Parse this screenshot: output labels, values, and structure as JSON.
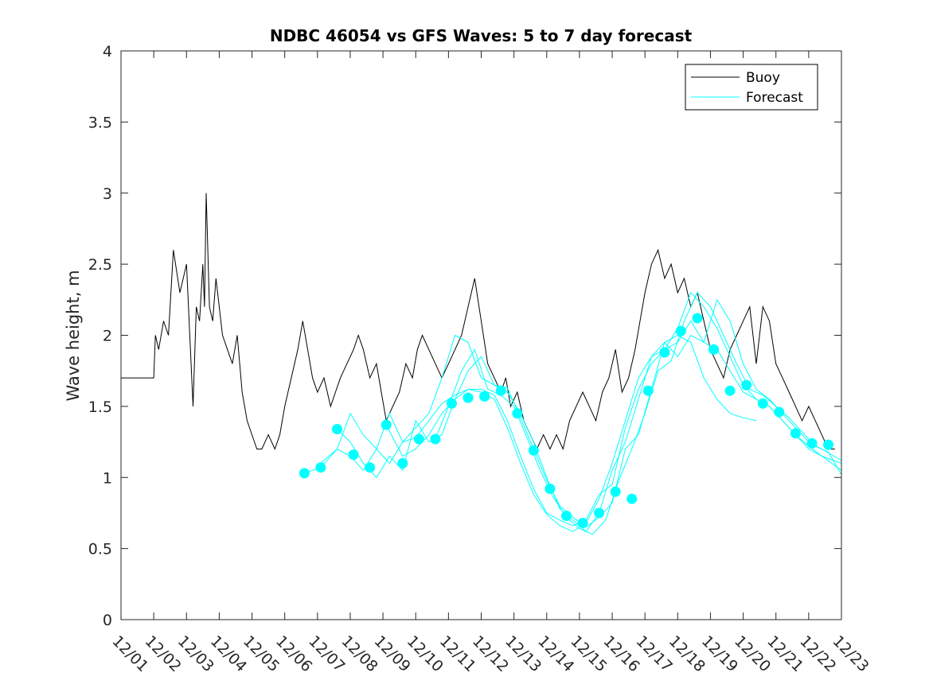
{
  "chart_data": {
    "type": "line",
    "title": "NDBC 46054 vs GFS Waves: 5 to 7 day forecast",
    "xlabel": "",
    "ylabel": "Wave height, m",
    "xlim": [
      0,
      22
    ],
    "ylim": [
      0,
      4
    ],
    "yticks": [
      0,
      0.5,
      1,
      1.5,
      2,
      2.5,
      3,
      3.5,
      4
    ],
    "ytick_labels": [
      "0",
      "0.5",
      "1",
      "1.5",
      "2",
      "2.5",
      "3",
      "3.5",
      "4"
    ],
    "xtick_labels": [
      "12/01",
      "12/02",
      "12/03",
      "12/04",
      "12/05",
      "12/06",
      "12/07",
      "12/08",
      "12/09",
      "12/10",
      "12/11",
      "12/12",
      "12/13",
      "12/14",
      "12/15",
      "12/16",
      "12/17",
      "12/18",
      "12/19",
      "12/20",
      "12/21",
      "12/22",
      "12/23"
    ],
    "legend": [
      "Buoy",
      "Forecast"
    ],
    "legend_position": "top-right",
    "colors": {
      "buoy": "#000000",
      "forecast": "#00ffff",
      "axis": "#262626"
    },
    "series": [
      {
        "name": "Buoy",
        "x": [
          0,
          1,
          1.05,
          1.15,
          1.3,
          1.45,
          1.6,
          1.8,
          2.0,
          2.1,
          2.2,
          2.3,
          2.4,
          2.5,
          2.55,
          2.6,
          2.7,
          2.8,
          2.9,
          3.0,
          3.1,
          3.25,
          3.4,
          3.55,
          3.7,
          3.85,
          4.0,
          4.15,
          4.3,
          4.5,
          4.7,
          4.85,
          5.0,
          5.2,
          5.4,
          5.55,
          5.7,
          5.85,
          6.0,
          6.2,
          6.4,
          6.55,
          6.7,
          6.9,
          7.1,
          7.25,
          7.4,
          7.6,
          7.8,
          7.95,
          8.1,
          8.3,
          8.5,
          8.7,
          8.9,
          9.05,
          9.2,
          9.4,
          9.6,
          9.8,
          10.0,
          10.2,
          10.4,
          10.6,
          10.8,
          11.0,
          11.2,
          11.4,
          11.6,
          11.75,
          11.9,
          12.1,
          12.3,
          12.5,
          12.7,
          12.9,
          13.1,
          13.3,
          13.5,
          13.7,
          13.9,
          14.1,
          14.3,
          14.5,
          14.7,
          14.9,
          15.1,
          15.3,
          15.5,
          15.7,
          15.85,
          16.0,
          16.2,
          16.4,
          16.6,
          16.8,
          17.0,
          17.2,
          17.4,
          17.6,
          17.8,
          18.0,
          18.2,
          18.4,
          18.6,
          18.8,
          19.0,
          19.2,
          19.4,
          19.6,
          19.8,
          20.0,
          20.2,
          20.4,
          20.6,
          20.8,
          21.0,
          21.2,
          21.4,
          21.6,
          21.8
        ],
        "y": [
          1.7,
          1.7,
          2.0,
          1.9,
          2.1,
          2.0,
          2.6,
          2.3,
          2.5,
          2.0,
          1.5,
          2.2,
          2.1,
          2.5,
          2.2,
          3.0,
          2.2,
          2.1,
          2.4,
          2.2,
          2.0,
          1.9,
          1.8,
          2.0,
          1.6,
          1.4,
          1.3,
          1.2,
          1.2,
          1.3,
          1.2,
          1.3,
          1.5,
          1.7,
          1.9,
          2.1,
          1.9,
          1.7,
          1.6,
          1.7,
          1.5,
          1.6,
          1.7,
          1.8,
          1.9,
          2.0,
          1.9,
          1.7,
          1.8,
          1.6,
          1.4,
          1.5,
          1.6,
          1.8,
          1.7,
          1.9,
          2.0,
          1.9,
          1.8,
          1.7,
          1.8,
          1.9,
          2.0,
          2.2,
          2.4,
          2.1,
          1.8,
          1.7,
          1.6,
          1.7,
          1.5,
          1.6,
          1.4,
          1.3,
          1.2,
          1.3,
          1.2,
          1.3,
          1.2,
          1.4,
          1.5,
          1.6,
          1.5,
          1.4,
          1.6,
          1.7,
          1.9,
          1.6,
          1.7,
          1.9,
          2.1,
          2.3,
          2.5,
          2.6,
          2.4,
          2.5,
          2.3,
          2.4,
          2.2,
          2.3,
          2.1,
          1.9,
          1.8,
          1.7,
          1.9,
          2.0,
          2.1,
          2.2,
          1.8,
          2.2,
          2.1,
          1.8,
          1.7,
          1.6,
          1.5,
          1.4,
          1.5,
          1.4,
          1.3,
          1.2,
          1.2
        ]
      },
      {
        "name": "Forecast",
        "markers_x": [
          5.6,
          6.1,
          6.6,
          7.1,
          7.6,
          8.1,
          8.6,
          9.1,
          9.6,
          10.1,
          10.6,
          11.1,
          11.6,
          12.1,
          12.6,
          13.1,
          13.6,
          14.1,
          14.6,
          15.1,
          15.6,
          16.1,
          16.6,
          17.1,
          17.6,
          18.1,
          18.6,
          19.1,
          19.6,
          20.1,
          20.6,
          21.1,
          21.6
        ],
        "markers_y": [
          1.03,
          1.07,
          1.34,
          1.16,
          1.07,
          1.37,
          1.1,
          1.27,
          1.27,
          1.52,
          1.56,
          1.57,
          1.61,
          1.45,
          1.19,
          0.92,
          0.73,
          0.68,
          0.75,
          0.9,
          0.85,
          1.61,
          1.88,
          2.03,
          2.12,
          1.9,
          1.61,
          1.65,
          1.52,
          1.46,
          1.31,
          1.24,
          1.23
        ],
        "runs": [
          {
            "x": [
              5.6,
              6.1,
              6.6,
              7.0,
              7.4,
              7.8,
              8.2,
              8.6,
              9.0,
              9.4,
              9.8,
              10.2,
              10.6,
              11.0,
              11.4,
              11.8,
              12.2,
              12.6,
              13.0,
              13.4,
              13.8,
              14.2,
              14.6,
              15.0,
              15.4,
              15.8,
              16.2,
              16.6,
              17.0,
              17.4,
              17.8,
              18.2,
              18.6,
              19.0,
              19.4,
              19.8,
              20.2,
              20.6,
              21.0,
              21.4,
              22.0
            ],
            "y": [
              1.03,
              1.07,
              1.2,
              1.15,
              1.05,
              1.2,
              1.1,
              1.25,
              1.28,
              1.4,
              1.52,
              1.58,
              1.62,
              1.62,
              1.58,
              1.4,
              1.15,
              0.92,
              0.75,
              0.7,
              0.66,
              0.7,
              0.88,
              0.95,
              1.35,
              1.62,
              1.8,
              1.9,
              1.95,
              2.1,
              1.95,
              1.9,
              1.75,
              1.6,
              1.55,
              1.5,
              1.4,
              1.3,
              1.22,
              1.15,
              1.1
            ]
          },
          {
            "x": [
              6.1,
              6.6,
              7.0,
              7.4,
              7.8,
              8.2,
              8.6,
              9.0,
              9.4,
              9.8,
              10.2,
              10.6,
              11.0,
              11.4,
              11.8,
              12.2,
              12.6,
              13.0,
              13.4,
              13.8,
              14.2,
              14.6,
              15.0,
              15.4,
              15.8,
              16.2,
              16.6,
              17.0,
              17.4,
              17.8,
              18.2,
              18.6,
              19.0,
              19.4,
              19.8,
              20.2,
              20.6,
              21.0,
              21.4,
              22.0
            ],
            "y": [
              1.1,
              1.2,
              1.45,
              1.3,
              1.2,
              1.45,
              1.25,
              1.35,
              1.45,
              1.7,
              2.0,
              1.95,
              1.7,
              1.65,
              1.63,
              1.42,
              1.2,
              0.98,
              0.8,
              0.72,
              0.65,
              0.72,
              0.82,
              1.2,
              1.3,
              1.62,
              1.95,
              1.85,
              2.0,
              1.95,
              2.25,
              2.1,
              1.8,
              1.62,
              1.55,
              1.45,
              1.35,
              1.25,
              1.2,
              1.12
            ]
          },
          {
            "x": [
              6.6,
              7.0,
              7.4,
              7.8,
              8.2,
              8.6,
              9.0,
              9.4,
              9.8,
              10.2,
              10.6,
              11.0,
              11.4,
              11.8,
              12.2,
              12.6,
              13.0,
              13.4,
              13.8,
              14.2,
              14.6,
              15.0,
              15.4,
              15.8,
              16.2,
              16.6,
              17.0,
              17.4,
              17.8,
              18.2,
              18.6,
              19.0,
              19.4,
              19.8,
              20.2,
              20.6,
              21.0,
              21.4,
              22.0
            ],
            "y": [
              1.34,
              1.25,
              1.1,
              1.0,
              1.15,
              1.05,
              1.4,
              1.25,
              1.3,
              1.55,
              1.75,
              1.85,
              1.65,
              1.6,
              1.45,
              1.25,
              1.0,
              0.78,
              0.7,
              0.62,
              0.75,
              1.05,
              1.25,
              1.55,
              1.85,
              1.9,
              2.05,
              2.3,
              2.2,
              2.05,
              1.85,
              1.65,
              1.55,
              1.5,
              1.4,
              1.3,
              1.2,
              1.15,
              1.05
            ]
          },
          {
            "x": [
              8.1,
              8.6,
              9.0,
              9.4,
              9.8,
              10.2,
              10.6,
              11.0,
              11.4,
              11.8,
              12.2,
              12.6,
              13.0,
              13.4,
              13.8,
              14.2,
              14.6,
              15.0,
              15.4,
              15.8,
              16.2,
              16.6,
              17.0,
              17.4,
              17.8,
              18.2,
              18.6,
              19.0,
              19.4
            ],
            "y": [
              1.37,
              1.15,
              1.2,
              1.3,
              1.45,
              1.55,
              1.62,
              1.6,
              1.55,
              1.35,
              1.1,
              0.88,
              0.74,
              0.66,
              0.62,
              0.68,
              0.85,
              1.1,
              1.4,
              1.7,
              1.85,
              1.95,
              2.0,
              1.95,
              1.7,
              1.55,
              1.45,
              1.42,
              1.4
            ]
          },
          {
            "x": [
              9.6,
              10.0,
              10.4,
              10.8,
              11.2,
              11.6,
              12.0,
              12.4,
              12.8,
              13.2,
              13.6,
              14.0,
              14.4,
              14.8,
              15.2,
              15.6,
              16.0,
              16.4,
              16.8,
              17.2,
              17.6,
              18.0,
              18.4,
              18.8,
              19.2,
              19.6,
              20.0,
              20.4,
              20.8,
              21.2,
              21.6,
              22.0
            ],
            "y": [
              1.27,
              1.5,
              1.75,
              1.9,
              1.62,
              1.58,
              1.5,
              1.28,
              1.05,
              0.86,
              0.72,
              0.64,
              0.6,
              0.7,
              0.98,
              1.2,
              1.45,
              1.75,
              1.82,
              2.1,
              2.3,
              2.2,
              2.0,
              1.8,
              1.62,
              1.58,
              1.5,
              1.42,
              1.32,
              1.22,
              1.18,
              1.02
            ]
          }
        ]
      }
    ]
  }
}
